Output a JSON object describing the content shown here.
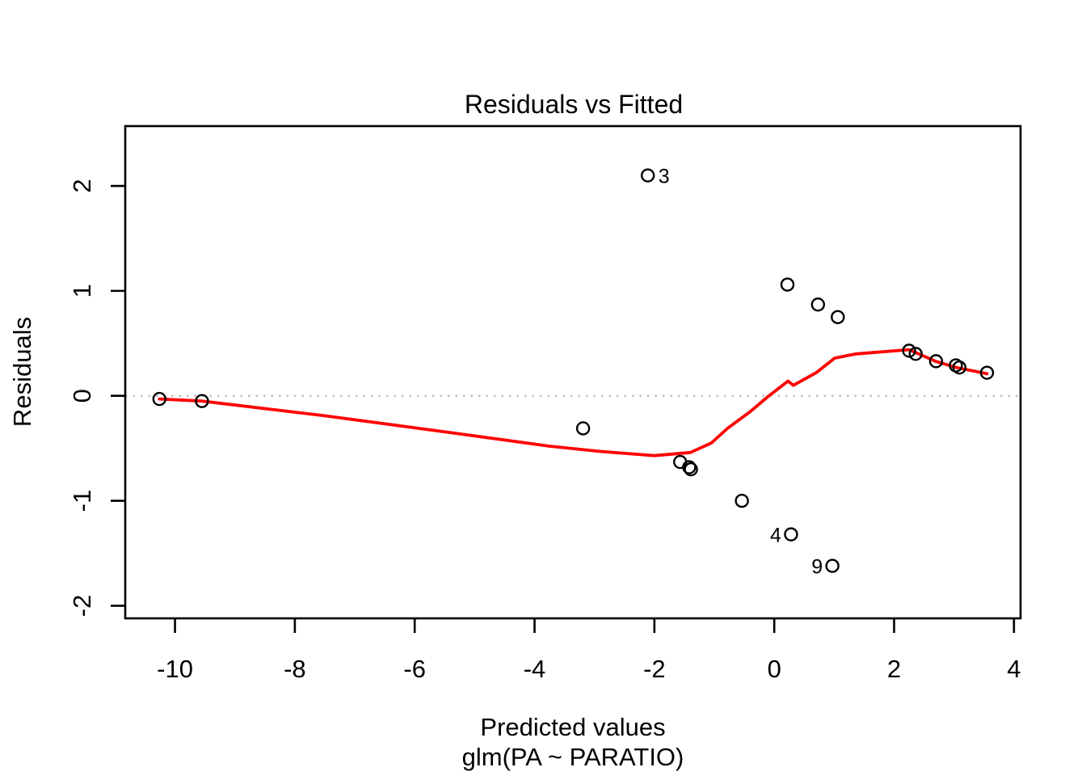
{
  "chart_data": {
    "type": "scatter",
    "title": "Residuals vs Fitted",
    "xlabel": "Predicted values",
    "model_label": "glm(PA ~ PARATIO)",
    "ylabel": "Residuals",
    "xlim": [
      -10.83,
      4.11
    ],
    "ylim": [
      -2.12,
      2.57
    ],
    "x_ticks": [
      -10,
      -8,
      -6,
      -4,
      -2,
      0,
      2,
      4
    ],
    "y_ticks": [
      -2,
      -1,
      0,
      1,
      2
    ],
    "grid": "off",
    "reference_line_y": 0,
    "colors": {
      "points": "#000000",
      "smoother": "#ff0000",
      "reference": "#c3c3c3"
    },
    "point_style": "open-circle",
    "points": [
      {
        "x": -10.26,
        "y": -0.03
      },
      {
        "x": -9.55,
        "y": -0.05
      },
      {
        "x": -3.19,
        "y": -0.31
      },
      {
        "x": -2.11,
        "y": 2.1,
        "label": "3",
        "label_side": "right"
      },
      {
        "x": -1.57,
        "y": -0.63
      },
      {
        "x": -1.42,
        "y": -0.68
      },
      {
        "x": -1.39,
        "y": -0.7
      },
      {
        "x": -0.54,
        "y": -1.0
      },
      {
        "x": 0.22,
        "y": 1.06
      },
      {
        "x": 0.28,
        "y": -1.32,
        "label": "4",
        "label_side": "left"
      },
      {
        "x": 0.73,
        "y": 0.87
      },
      {
        "x": 0.97,
        "y": -1.62,
        "label": "9",
        "label_side": "left"
      },
      {
        "x": 1.06,
        "y": 0.75
      },
      {
        "x": 2.25,
        "y": 0.43
      },
      {
        "x": 2.36,
        "y": 0.4
      },
      {
        "x": 2.7,
        "y": 0.33
      },
      {
        "x": 3.03,
        "y": 0.29
      },
      {
        "x": 3.09,
        "y": 0.27
      },
      {
        "x": 3.55,
        "y": 0.22
      }
    ],
    "smoother_line": [
      [
        -10.26,
        -0.03
      ],
      [
        -9.55,
        -0.05
      ],
      [
        -7.5,
        -0.19
      ],
      [
        -5.4,
        -0.35
      ],
      [
        -3.75,
        -0.48
      ],
      [
        -2.9,
        -0.53
      ],
      [
        -2.0,
        -0.57
      ],
      [
        -1.4,
        -0.54
      ],
      [
        -1.05,
        -0.45
      ],
      [
        -0.78,
        -0.31
      ],
      [
        -0.4,
        -0.15
      ],
      [
        -0.11,
        -0.01
      ],
      [
        0.23,
        0.14
      ],
      [
        0.32,
        0.1
      ],
      [
        0.7,
        0.22
      ],
      [
        1.01,
        0.36
      ],
      [
        1.37,
        0.4
      ],
      [
        2.25,
        0.44
      ],
      [
        2.69,
        0.33
      ],
      [
        3.04,
        0.27
      ],
      [
        3.55,
        0.21
      ]
    ]
  }
}
